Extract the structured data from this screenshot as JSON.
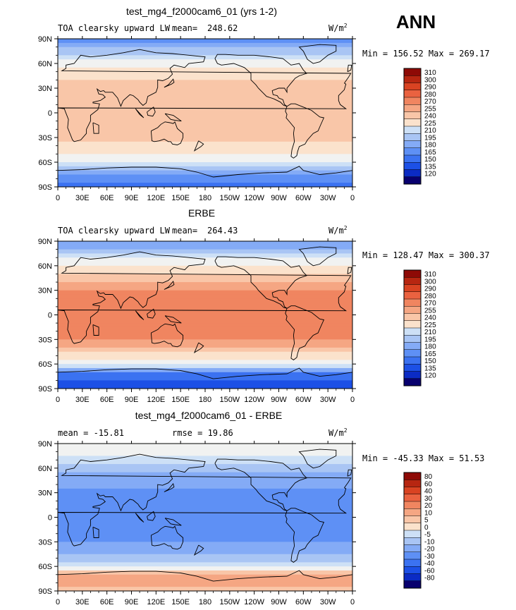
{
  "season": "ANN",
  "colors": {
    "abs_palette": [
      "#08006e",
      "#0b2bc4",
      "#1c50e6",
      "#3b72f1",
      "#5e90f5",
      "#84abf6",
      "#a9c5f4",
      "#cde0f6",
      "#f1f2f1",
      "#fbe2cc",
      "#f9c6a8",
      "#f5a683",
      "#f08560",
      "#ea6240",
      "#d94322",
      "#b72611",
      "#8e0a06"
    ],
    "diff_palette": [
      "#08006e",
      "#0b2bc4",
      "#1c50e6",
      "#3b72f1",
      "#5e90f5",
      "#84abf6",
      "#a9c5f4",
      "#cde0f6",
      "#f1f2f1",
      "#fbe2cc",
      "#f9c6a8",
      "#f5a683",
      "#f08560",
      "#ea6240",
      "#d94322",
      "#b72611",
      "#8e0a06"
    ]
  },
  "chart_data": [
    {
      "type": "heatmap",
      "title": "test_mg4_f2000cam6_01 (yrs 1-2)",
      "variable": "TOA clearsky upward LW",
      "mean_label": "mean=",
      "mean": "248.62",
      "units_base": "W/m",
      "units_exp": "2",
      "min_max": "Min = 156.52 Max = 269.17",
      "x_ticks": [
        "0",
        "30E",
        "60E",
        "90E",
        "120E",
        "150E",
        "180",
        "150W",
        "120W",
        "90W",
        "60W",
        "30W",
        "0"
      ],
      "y_ticks": [
        "90N",
        "60N",
        "30N",
        "0",
        "30S",
        "60S",
        "90S"
      ],
      "xlim": [
        0,
        360
      ],
      "ylim": [
        -90,
        90
      ],
      "levels": [
        "310",
        "300",
        "290",
        "280",
        "270",
        "255",
        "240",
        "225",
        "210",
        "195",
        "180",
        "165",
        "150",
        "135",
        "120"
      ],
      "zonal_profile": [
        {
          "lat": 90,
          "value": 175
        },
        {
          "lat": 80,
          "value": 195
        },
        {
          "lat": 70,
          "value": 215
        },
        {
          "lat": 60,
          "value": 232
        },
        {
          "lat": 50,
          "value": 245
        },
        {
          "lat": 40,
          "value": 255
        },
        {
          "lat": 30,
          "value": 262
        },
        {
          "lat": 20,
          "value": 265
        },
        {
          "lat": 10,
          "value": 266
        },
        {
          "lat": 0,
          "value": 266
        },
        {
          "lat": -10,
          "value": 266
        },
        {
          "lat": -20,
          "value": 265
        },
        {
          "lat": -30,
          "value": 262
        },
        {
          "lat": -40,
          "value": 252
        },
        {
          "lat": -50,
          "value": 240
        },
        {
          "lat": -60,
          "value": 228
        },
        {
          "lat": -65,
          "value": 215
        },
        {
          "lat": -70,
          "value": 195
        },
        {
          "lat": -80,
          "value": 170
        },
        {
          "lat": -90,
          "value": 160
        }
      ]
    },
    {
      "type": "heatmap",
      "title": "ERBE",
      "variable": "TOA clearsky upward LW",
      "mean_label": "mean=",
      "mean": "264.43",
      "units_base": "W/m",
      "units_exp": "2",
      "min_max": "Min = 128.47 Max = 300.37",
      "x_ticks": [
        "0",
        "30E",
        "60E",
        "90E",
        "120E",
        "150E",
        "180",
        "150W",
        "120W",
        "90W",
        "60W",
        "30W",
        "0"
      ],
      "y_ticks": [
        "90N",
        "60N",
        "30N",
        "0",
        "30S",
        "60S",
        "90S"
      ],
      "xlim": [
        0,
        360
      ],
      "ylim": [
        -90,
        90
      ],
      "levels": [
        "310",
        "300",
        "290",
        "280",
        "270",
        "255",
        "240",
        "225",
        "210",
        "195",
        "180",
        "165",
        "150",
        "135",
        "120"
      ],
      "zonal_profile": [
        {
          "lat": 90,
          "value": 180
        },
        {
          "lat": 80,
          "value": 200
        },
        {
          "lat": 70,
          "value": 222
        },
        {
          "lat": 60,
          "value": 240
        },
        {
          "lat": 50,
          "value": 258
        },
        {
          "lat": 40,
          "value": 272
        },
        {
          "lat": 30,
          "value": 282
        },
        {
          "lat": 20,
          "value": 288
        },
        {
          "lat": 10,
          "value": 286
        },
        {
          "lat": 0,
          "value": 290
        },
        {
          "lat": -10,
          "value": 288
        },
        {
          "lat": -20,
          "value": 286
        },
        {
          "lat": -30,
          "value": 280
        },
        {
          "lat": -40,
          "value": 268
        },
        {
          "lat": -50,
          "value": 250
        },
        {
          "lat": -60,
          "value": 232
        },
        {
          "lat": -65,
          "value": 200
        },
        {
          "lat": -70,
          "value": 170
        },
        {
          "lat": -80,
          "value": 150
        },
        {
          "lat": -90,
          "value": 140
        }
      ]
    },
    {
      "type": "heatmap",
      "title": "test_mg4_f2000cam6_01 - ERBE",
      "mean_text": "mean = -15.81",
      "rmse_text": "rmse = 19.86",
      "units_base": "W/m",
      "units_exp": "2",
      "min_max": "Min = -45.33 Max = 51.53",
      "x_ticks": [
        "0",
        "30E",
        "60E",
        "90E",
        "120E",
        "150E",
        "180",
        "150W",
        "120W",
        "90W",
        "60W",
        "30W",
        "0"
      ],
      "y_ticks": [
        "90N",
        "60N",
        "30N",
        "0",
        "30S",
        "60S",
        "90S"
      ],
      "xlim": [
        0,
        360
      ],
      "ylim": [
        -90,
        90
      ],
      "levels": [
        "80",
        "60",
        "40",
        "30",
        "20",
        "10",
        "5",
        "0",
        "-5",
        "-10",
        "-20",
        "-30",
        "-40",
        "-60",
        "-80"
      ],
      "zonal_profile": [
        {
          "lat": 90,
          "value": 3
        },
        {
          "lat": 80,
          "value": 2
        },
        {
          "lat": 70,
          "value": -2
        },
        {
          "lat": 60,
          "value": -8
        },
        {
          "lat": 50,
          "value": -12
        },
        {
          "lat": 40,
          "value": -18
        },
        {
          "lat": 30,
          "value": -22
        },
        {
          "lat": 20,
          "value": -24
        },
        {
          "lat": 10,
          "value": -22
        },
        {
          "lat": 0,
          "value": -25
        },
        {
          "lat": -10,
          "value": -24
        },
        {
          "lat": -20,
          "value": -22
        },
        {
          "lat": -30,
          "value": -20
        },
        {
          "lat": -40,
          "value": -15
        },
        {
          "lat": -50,
          "value": -8
        },
        {
          "lat": -60,
          "value": -3
        },
        {
          "lat": -65,
          "value": 8
        },
        {
          "lat": -70,
          "value": 25
        },
        {
          "lat": -80,
          "value": 22
        },
        {
          "lat": -90,
          "value": 18
        }
      ]
    }
  ]
}
